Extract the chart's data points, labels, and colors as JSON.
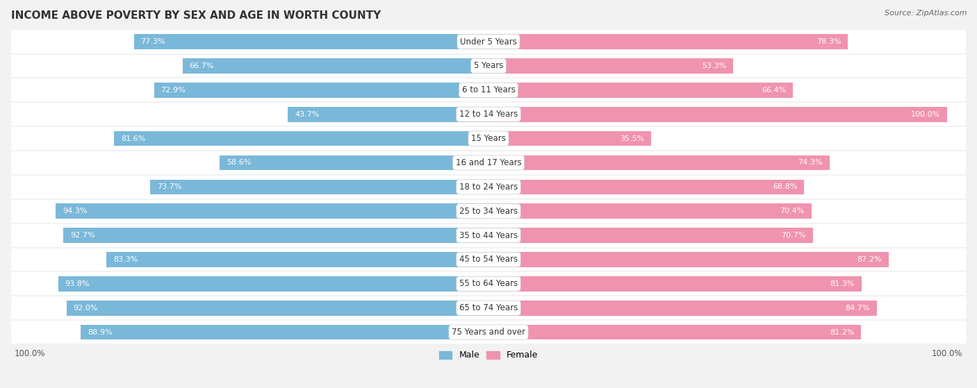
{
  "title": "INCOME ABOVE POVERTY BY SEX AND AGE IN WORTH COUNTY",
  "source": "Source: ZipAtlas.com",
  "categories": [
    "Under 5 Years",
    "5 Years",
    "6 to 11 Years",
    "12 to 14 Years",
    "15 Years",
    "16 and 17 Years",
    "18 to 24 Years",
    "25 to 34 Years",
    "35 to 44 Years",
    "45 to 54 Years",
    "55 to 64 Years",
    "65 to 74 Years",
    "75 Years and over"
  ],
  "male_values": [
    77.3,
    66.7,
    72.9,
    43.7,
    81.6,
    58.6,
    73.7,
    94.3,
    92.7,
    83.3,
    93.8,
    92.0,
    88.9
  ],
  "female_values": [
    78.3,
    53.3,
    66.4,
    100.0,
    35.5,
    74.3,
    68.8,
    70.4,
    70.7,
    87.2,
    81.3,
    84.7,
    81.2
  ],
  "male_color": "#7ab8d9",
  "female_color": "#f093ae",
  "male_label": "Male",
  "female_label": "Female",
  "background_color": "#f2f2f2",
  "bar_background": "#ffffff",
  "row_bg_color": "#e8e8e8",
  "max_value": 100.0,
  "title_fontsize": 11,
  "label_fontsize": 8.5,
  "value_fontsize": 8.0,
  "tick_fontsize": 8.5
}
